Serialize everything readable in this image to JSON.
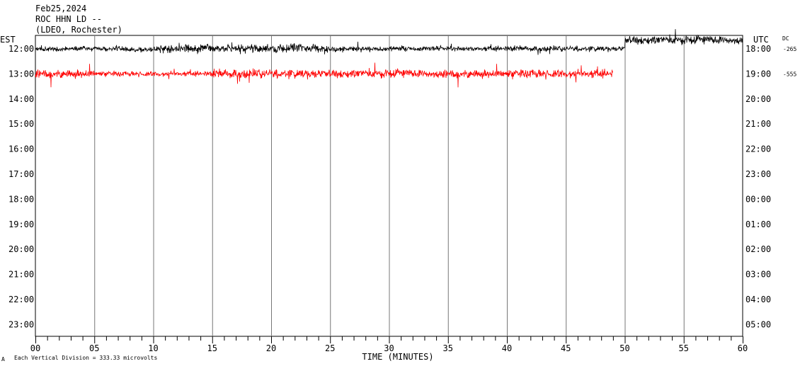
{
  "header": {
    "date": "Feb25,2024",
    "station": "ROC HHN LD --",
    "network": "(LDEO, Rochester)"
  },
  "labels": {
    "left_timezone": "EST",
    "right_timezone": "UTC",
    "dc_label": "DC",
    "xlabel": "TIME (MINUTES)",
    "footer": "Each Vertical Division =  333.33 microvolts",
    "footer_mark": "A"
  },
  "chart_data": {
    "type": "line",
    "title": "",
    "xlabel": "TIME (MINUTES)",
    "ylabel": "",
    "xlim": [
      0,
      60
    ],
    "x_ticks": [
      "00",
      "05",
      "10",
      "15",
      "20",
      "25",
      "30",
      "35",
      "40",
      "45",
      "50",
      "55",
      "60"
    ],
    "row_labels_left": [
      "12:00",
      "13:00",
      "14:00",
      "15:00",
      "16:00",
      "17:00",
      "18:00",
      "19:00",
      "20:00",
      "21:00",
      "22:00",
      "23:00"
    ],
    "row_labels_right": [
      "18:00",
      "19:00",
      "20:00",
      "21:00",
      "22:00",
      "23:00",
      "00:00",
      "01:00",
      "02:00",
      "03:00",
      "04:00",
      "05:00"
    ],
    "dc_offsets": [
      "-265",
      "-555"
    ],
    "vertical_division_microvolts": 333.33,
    "grid": "vertical lines every 5 minutes",
    "series": [
      {
        "color": "#000000",
        "row": 0,
        "x_end": 60,
        "segments": [
          {
            "x": [
              0,
              10
            ],
            "amplitude": "medium"
          },
          {
            "x": [
              10,
              25
            ],
            "amplitude": "high"
          },
          {
            "x": [
              25,
              50
            ],
            "amplitude": "medium"
          },
          {
            "x": [
              50,
              60
            ],
            "amplitude": "high",
            "baseline_shift": "up"
          }
        ]
      },
      {
        "color": "#ff0000",
        "row": 1,
        "x_end": 49,
        "segments": [
          {
            "x": [
              0,
              5
            ],
            "amplitude": "high"
          },
          {
            "x": [
              5,
              15
            ],
            "amplitude": "medium"
          },
          {
            "x": [
              15,
              25
            ],
            "amplitude": "high"
          },
          {
            "x": [
              25,
              49
            ],
            "amplitude": "high"
          }
        ]
      }
    ]
  }
}
